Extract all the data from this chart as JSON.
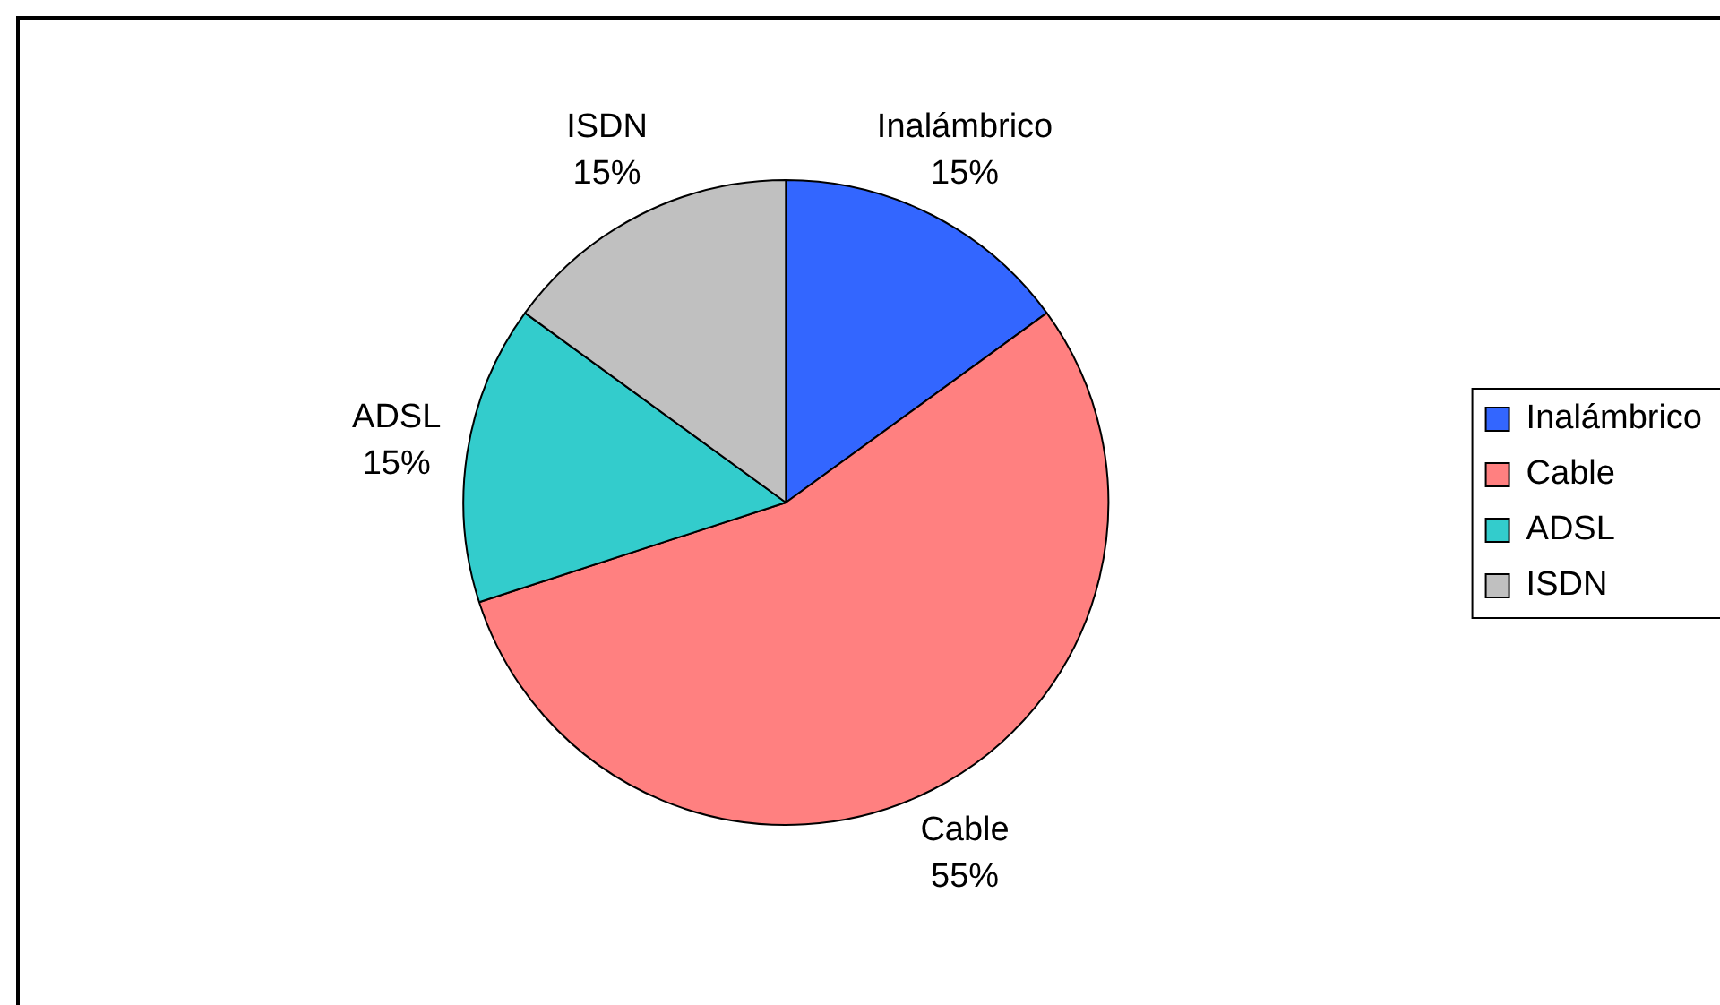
{
  "chart_data": {
    "type": "pie",
    "categories": [
      "Inalámbrico",
      "Cable",
      "ADSL",
      "ISDN"
    ],
    "values": [
      15,
      55,
      15,
      15
    ],
    "colors": [
      "#3366ff",
      "#ff8080",
      "#33cccc",
      "#c0c0c0"
    ],
    "value_labels": [
      "15%",
      "55%",
      "15%",
      "15%"
    ],
    "legend": "right"
  }
}
